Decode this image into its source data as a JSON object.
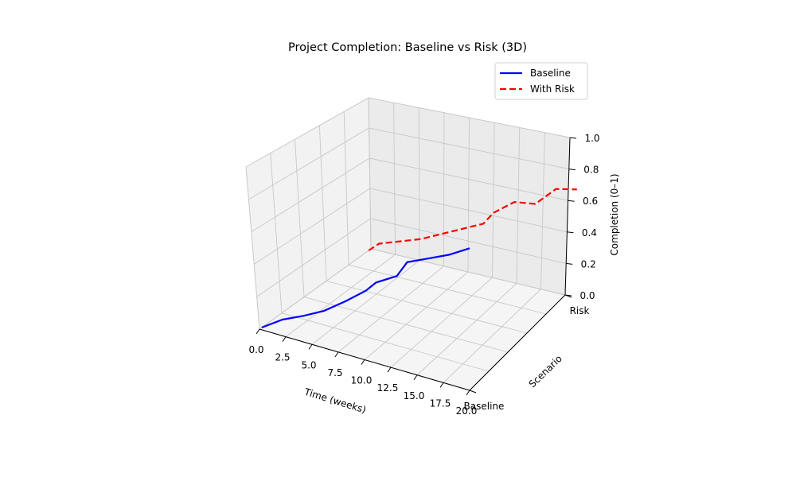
{
  "chart_data": {
    "type": "line",
    "projection": "3d",
    "title": "Project Completion: Baseline vs Risk (3D)",
    "xlabel": "Time (weeks)",
    "ylabel": "Scenario",
    "zlabel": "Completion (0–1)",
    "xlim": [
      0,
      20
    ],
    "zlim": [
      0,
      1
    ],
    "x_ticks": [
      "0.0",
      "2.5",
      "5.0",
      "7.5",
      "10.0",
      "12.5",
      "15.0",
      "17.5",
      "20.0"
    ],
    "y_ticks": [
      "Baseline",
      "Risk"
    ],
    "z_ticks": [
      "0.0",
      "0.2",
      "0.4",
      "0.6",
      "0.8",
      "1.0"
    ],
    "grid": true,
    "legend_position": "top-right",
    "series": [
      {
        "name": "Baseline",
        "scenario": "Baseline",
        "color": "#0000ff",
        "style": "solid",
        "x": [
          0,
          2,
          4,
          6,
          8,
          10,
          11,
          13,
          14,
          16,
          18,
          20
        ],
        "y": [
          0.0,
          0.1,
          0.17,
          0.25,
          0.36,
          0.48,
          0.56,
          0.65,
          0.77,
          0.84,
          0.91,
          1.0
        ]
      },
      {
        "name": "With Risk",
        "scenario": "Risk",
        "color": "#ff0000",
        "style": "dashed",
        "x": [
          0,
          1,
          3,
          5,
          7,
          9,
          11,
          12,
          14,
          16,
          18,
          20
        ],
        "y": [
          0.0,
          0.07,
          0.13,
          0.19,
          0.27,
          0.35,
          0.43,
          0.53,
          0.65,
          0.68,
          0.83,
          0.87
        ]
      }
    ]
  }
}
